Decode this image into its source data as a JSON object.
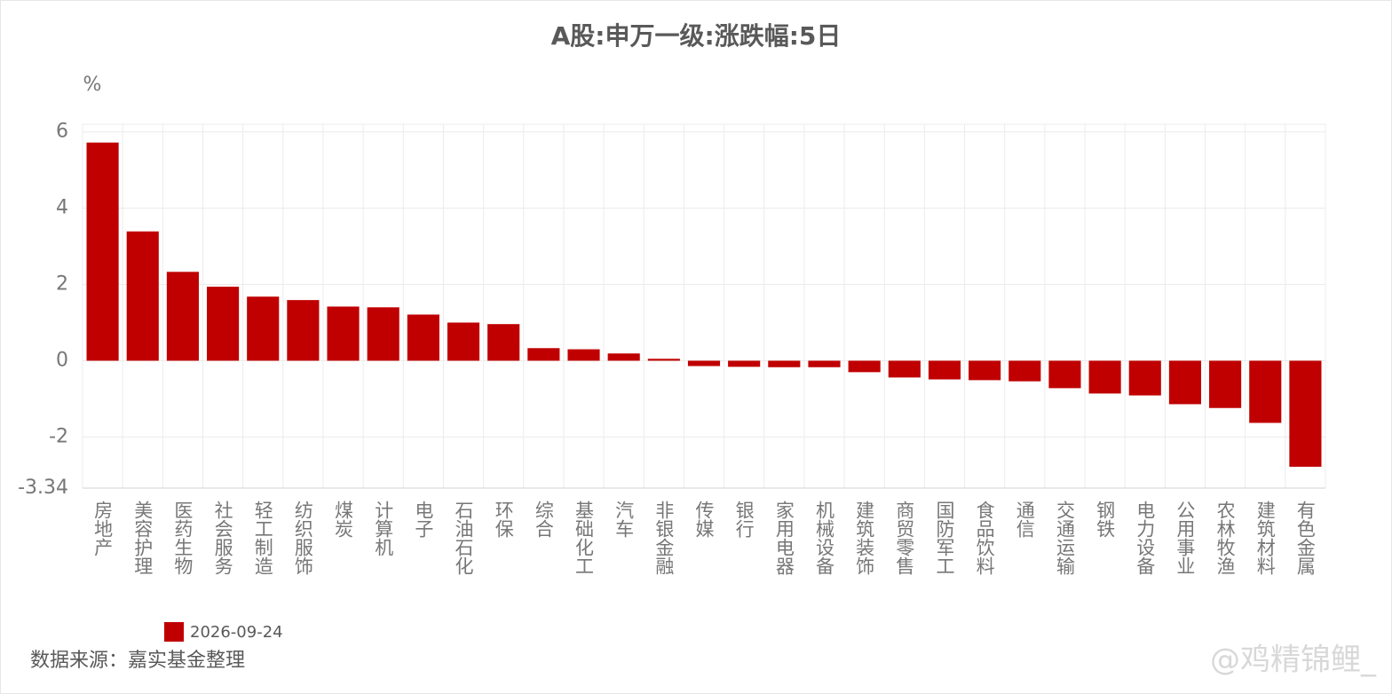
{
  "chart_data": {
    "type": "bar",
    "title": "A股:申万一级:涨跌幅:5日",
    "y_label": "%",
    "categories": [
      "房地产",
      "美容护理",
      "医药生物",
      "社会服务",
      "轻工制造",
      "纺织服饰",
      "煤炭",
      "计算机",
      "电子",
      "石油石化",
      "环保",
      "综合",
      "基础化工",
      "汽车",
      "非银金融",
      "传媒",
      "银行",
      "家用电器",
      "机械设备",
      "建筑装饰",
      "商贸零售",
      "国防军工",
      "食品饮料",
      "通信",
      "交通运输",
      "钢铁",
      "电力设备",
      "公用事业",
      "农林牧渔",
      "建筑材料",
      "有色金属"
    ],
    "series": [
      {
        "name": "2026-09-24",
        "color": "#c00000",
        "values": [
          5.72,
          3.39,
          2.33,
          1.94,
          1.68,
          1.59,
          1.42,
          1.4,
          1.21,
          1.0,
          0.96,
          0.33,
          0.3,
          0.19,
          0.05,
          -0.14,
          -0.16,
          -0.17,
          -0.17,
          -0.3,
          -0.44,
          -0.49,
          -0.51,
          -0.54,
          -0.72,
          -0.86,
          -0.91,
          -1.14,
          -1.24,
          -1.63,
          -2.78
        ]
      }
    ],
    "ylim": [
      -3.34,
      6.2
    ],
    "yticks": [
      6,
      4,
      2,
      0,
      -2,
      -3.34
    ],
    "grid": true,
    "source": "数据来源：嘉实基金整理",
    "watermark": "@鸡精锦鲤_"
  }
}
